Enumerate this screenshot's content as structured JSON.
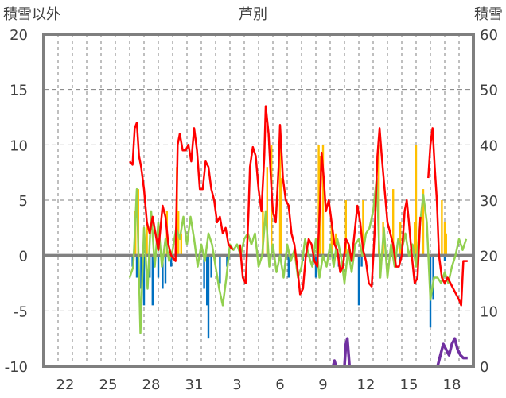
{
  "chart_data": {
    "type": "line",
    "title": "芦別",
    "ylabel_left": "積雪以外",
    "ylabel_right": "積雪",
    "ylim_left": [
      -10,
      20
    ],
    "ylim_right": [
      0,
      60
    ],
    "yticks_left": [
      20,
      15,
      10,
      5,
      0,
      -5,
      -10
    ],
    "yticks_right": [
      60,
      50,
      40,
      30,
      20,
      10,
      0
    ],
    "x_unit": "days since start of day 21",
    "xlim": [
      0,
      30
    ],
    "xticks": [
      {
        "pos": 1,
        "label": "22"
      },
      {
        "pos": 4,
        "label": "25"
      },
      {
        "pos": 7,
        "label": "28"
      },
      {
        "pos": 10,
        "label": "31"
      },
      {
        "pos": 13,
        "label": "3"
      },
      {
        "pos": 16,
        "label": "6"
      },
      {
        "pos": 19,
        "label": "9"
      },
      {
        "pos": 22,
        "label": "12"
      },
      {
        "pos": 25,
        "label": "15"
      },
      {
        "pos": 28,
        "label": "18"
      }
    ],
    "grid": true,
    "colors": {
      "red": "#ff0000",
      "green": "#92d050",
      "blue": "#0070c0",
      "orange": "#ffc000",
      "purple": "#7030a0",
      "frame": "#7f7f7f"
    },
    "series": [
      {
        "name": "red-line",
        "axis": "left",
        "points": [
          [
            6.0,
            8.5
          ],
          [
            6.2,
            8.2
          ],
          [
            6.35,
            11.5
          ],
          [
            6.5,
            12
          ],
          [
            6.65,
            9
          ],
          [
            6.8,
            8
          ],
          [
            7.0,
            6
          ],
          [
            7.2,
            3
          ],
          [
            7.4,
            2
          ],
          [
            7.6,
            3.5
          ],
          [
            7.8,
            2
          ],
          [
            8.0,
            0.5
          ],
          [
            8.3,
            4.5
          ],
          [
            8.5,
            3.5
          ],
          [
            8.7,
            1
          ],
          [
            8.9,
            0
          ],
          [
            9.2,
            -0.5
          ],
          [
            9.35,
            10
          ],
          [
            9.5,
            11
          ],
          [
            9.7,
            9.5
          ],
          [
            9.9,
            9.5
          ],
          [
            10.1,
            10
          ],
          [
            10.3,
            8.5
          ],
          [
            10.5,
            11.5
          ],
          [
            10.7,
            9.5
          ],
          [
            10.9,
            6
          ],
          [
            11.1,
            6
          ],
          [
            11.3,
            8.5
          ],
          [
            11.5,
            8
          ],
          [
            11.7,
            6
          ],
          [
            11.9,
            5
          ],
          [
            12.1,
            3
          ],
          [
            12.3,
            3.5
          ],
          [
            12.5,
            2
          ],
          [
            12.7,
            2.5
          ],
          [
            12.9,
            1
          ],
          [
            13.2,
            0.5
          ],
          null,
          [
            13.7,
            1
          ],
          [
            13.9,
            -2
          ],
          [
            14.1,
            -2.5
          ],
          [
            14.3,
            4
          ],
          [
            14.4,
            8
          ],
          [
            14.6,
            9.8
          ],
          [
            14.8,
            9
          ],
          [
            15.0,
            6
          ],
          [
            15.2,
            4
          ],
          [
            15.4,
            9
          ],
          [
            15.5,
            13.5
          ],
          [
            15.7,
            11
          ],
          [
            15.9,
            6
          ],
          [
            16.0,
            4
          ],
          [
            16.2,
            3
          ],
          [
            16.4,
            8
          ],
          [
            16.5,
            11.8
          ],
          [
            16.7,
            7
          ],
          [
            16.9,
            5
          ],
          [
            17.1,
            4.5
          ],
          [
            17.3,
            2
          ],
          [
            17.5,
            1
          ],
          [
            17.7,
            -1
          ],
          [
            17.9,
            -3.5
          ],
          [
            18.1,
            -3
          ],
          [
            18.3,
            0
          ],
          [
            18.5,
            1.5
          ],
          [
            18.7,
            1
          ],
          [
            18.9,
            -0.5
          ],
          [
            19.1,
            -1
          ],
          [
            19.3,
            5
          ],
          [
            19.4,
            9.3
          ],
          [
            19.55,
            7
          ],
          [
            19.7,
            4
          ],
          [
            19.9,
            5
          ],
          [
            20.1,
            3
          ],
          [
            20.3,
            1
          ],
          [
            20.5,
            0.5
          ],
          [
            20.7,
            -1.5
          ],
          [
            20.9,
            -1
          ],
          [
            21.1,
            1.5
          ],
          [
            21.3,
            1
          ],
          [
            21.5,
            -0.5
          ],
          [
            21.7,
            2
          ],
          [
            21.9,
            4.5
          ],
          [
            22.1,
            3
          ],
          [
            22.3,
            0.5
          ],
          [
            22.5,
            -0.5
          ],
          [
            22.7,
            -2.5
          ],
          [
            22.9,
            -2.8
          ],
          [
            23.1,
            2
          ],
          [
            23.3,
            9
          ],
          [
            23.45,
            11.5
          ],
          [
            23.6,
            9
          ],
          [
            23.8,
            6
          ],
          [
            24.0,
            3
          ],
          [
            24.2,
            2
          ],
          [
            24.4,
            1
          ],
          [
            24.6,
            -1
          ],
          [
            24.8,
            -1
          ],
          [
            25.0,
            0
          ],
          [
            25.2,
            4
          ],
          [
            25.35,
            5
          ],
          [
            25.5,
            3
          ],
          [
            25.7,
            0
          ],
          [
            25.9,
            -2.5
          ],
          [
            26.1,
            -2
          ],
          [
            26.3,
            3.5
          ],
          null,
          [
            26.85,
            7
          ],
          [
            27.0,
            10
          ],
          [
            27.15,
            11.5
          ],
          [
            27.3,
            8
          ],
          [
            27.45,
            5
          ],
          [
            27.6,
            0
          ],
          [
            27.8,
            -2
          ],
          [
            28.0,
            -2.5
          ],
          [
            28.2,
            -2
          ],
          [
            28.4,
            -2.5
          ],
          [
            28.6,
            -3
          ],
          [
            28.8,
            -3.5
          ],
          [
            29.0,
            -4
          ],
          [
            29.15,
            -4.5
          ],
          [
            29.3,
            -0.5
          ],
          [
            29.6,
            -0.5
          ]
        ]
      },
      {
        "name": "green-line",
        "axis": "left",
        "x_start": 6.0,
        "x_step": 0.25,
        "values": [
          -2,
          -1,
          6,
          -7,
          2.5,
          -3,
          4,
          -1,
          3,
          -1,
          1.5,
          -0.5,
          0.5,
          2.5,
          1.5,
          3.5,
          1,
          3.5,
          1.5,
          -1,
          1,
          -0.5,
          2,
          1,
          -1,
          -3,
          -4.5,
          -2,
          1,
          0.5,
          1,
          0,
          1.5,
          2,
          1,
          2,
          -1,
          0,
          4,
          -1,
          1,
          -1.5,
          0,
          -2,
          1,
          -0.5,
          0.5,
          -2,
          -1,
          1.5,
          0,
          -1,
          1.5,
          -2,
          0,
          -1,
          1,
          -1,
          1.5,
          0,
          -2.5,
          0.5,
          -1.5,
          1,
          1.5,
          0,
          2,
          2.5,
          4,
          7,
          -2,
          2.5,
          -2,
          1,
          -1,
          1.5,
          0.5,
          2,
          0,
          1,
          -1,
          2.5,
          5.5,
          3,
          -4,
          -2,
          -2,
          -2.5,
          -1.5,
          -2.5,
          -1,
          0,
          1.5,
          0.5,
          1.5
        ]
      },
      {
        "name": "orange-bars",
        "axis": "left",
        "points": [
          [
            6.4,
            4
          ],
          [
            6.6,
            6
          ],
          [
            7.2,
            3
          ],
          [
            8.6,
            4
          ],
          [
            9.3,
            8
          ],
          [
            9.4,
            4
          ],
          [
            9.6,
            2
          ],
          [
            15.3,
            4
          ],
          [
            15.6,
            8
          ],
          [
            15.9,
            10
          ],
          [
            16.5,
            10
          ],
          [
            16.6,
            7
          ],
          [
            19.2,
            10
          ],
          [
            19.3,
            9
          ],
          [
            19.5,
            10
          ],
          [
            20.1,
            3
          ],
          [
            20.4,
            2
          ],
          [
            21.1,
            5
          ],
          [
            22.3,
            5
          ],
          [
            23.4,
            10
          ],
          [
            23.7,
            3
          ],
          [
            24.4,
            6
          ],
          [
            24.9,
            3
          ],
          [
            25.9,
            3
          ],
          [
            26.0,
            10
          ],
          [
            26.5,
            6
          ],
          [
            27.8,
            5
          ],
          [
            28.0,
            3
          ],
          [
            28.1,
            2
          ]
        ]
      },
      {
        "name": "blue-bars",
        "axis": "left",
        "points": [
          [
            6.2,
            -1
          ],
          [
            6.5,
            -2
          ],
          [
            6.8,
            -3
          ],
          [
            7.0,
            -4.5
          ],
          [
            7.4,
            -2
          ],
          [
            7.6,
            -4.5
          ],
          [
            8.0,
            -2
          ],
          [
            8.3,
            -3
          ],
          [
            8.5,
            -2.5
          ],
          [
            8.9,
            -1
          ],
          [
            11.2,
            -3
          ],
          [
            11.4,
            -4.5
          ],
          [
            11.5,
            -7.5
          ],
          [
            11.7,
            -2
          ],
          [
            12.3,
            -2.5
          ],
          [
            12.8,
            -1
          ],
          [
            16.5,
            -0.3
          ],
          [
            17.1,
            -2
          ],
          [
            18.1,
            -0.5
          ],
          [
            18.8,
            -0.8
          ],
          [
            19.0,
            -2
          ],
          [
            20.2,
            -0.5
          ],
          [
            20.6,
            -1
          ],
          [
            22.0,
            -4.5
          ],
          [
            22.2,
            -1
          ],
          [
            24.9,
            -0.5
          ],
          [
            27.0,
            -6.5
          ],
          [
            27.2,
            -4
          ],
          [
            28.0,
            -0.5
          ]
        ]
      },
      {
        "name": "purple-line",
        "axis": "right",
        "points": [
          [
            6,
            0
          ],
          [
            20.2,
            0
          ],
          [
            20.3,
            1
          ],
          [
            20.4,
            0
          ],
          [
            21.0,
            0
          ],
          [
            21.1,
            4
          ],
          [
            21.2,
            5
          ],
          [
            21.35,
            0
          ],
          [
            27.5,
            0
          ],
          [
            27.7,
            2
          ],
          [
            27.9,
            4
          ],
          [
            28.1,
            3
          ],
          [
            28.3,
            2
          ],
          [
            28.5,
            4
          ],
          [
            28.7,
            5
          ],
          [
            28.9,
            3
          ],
          [
            29.1,
            2
          ],
          [
            29.3,
            1.5
          ],
          [
            29.6,
            1.5
          ]
        ]
      }
    ]
  }
}
